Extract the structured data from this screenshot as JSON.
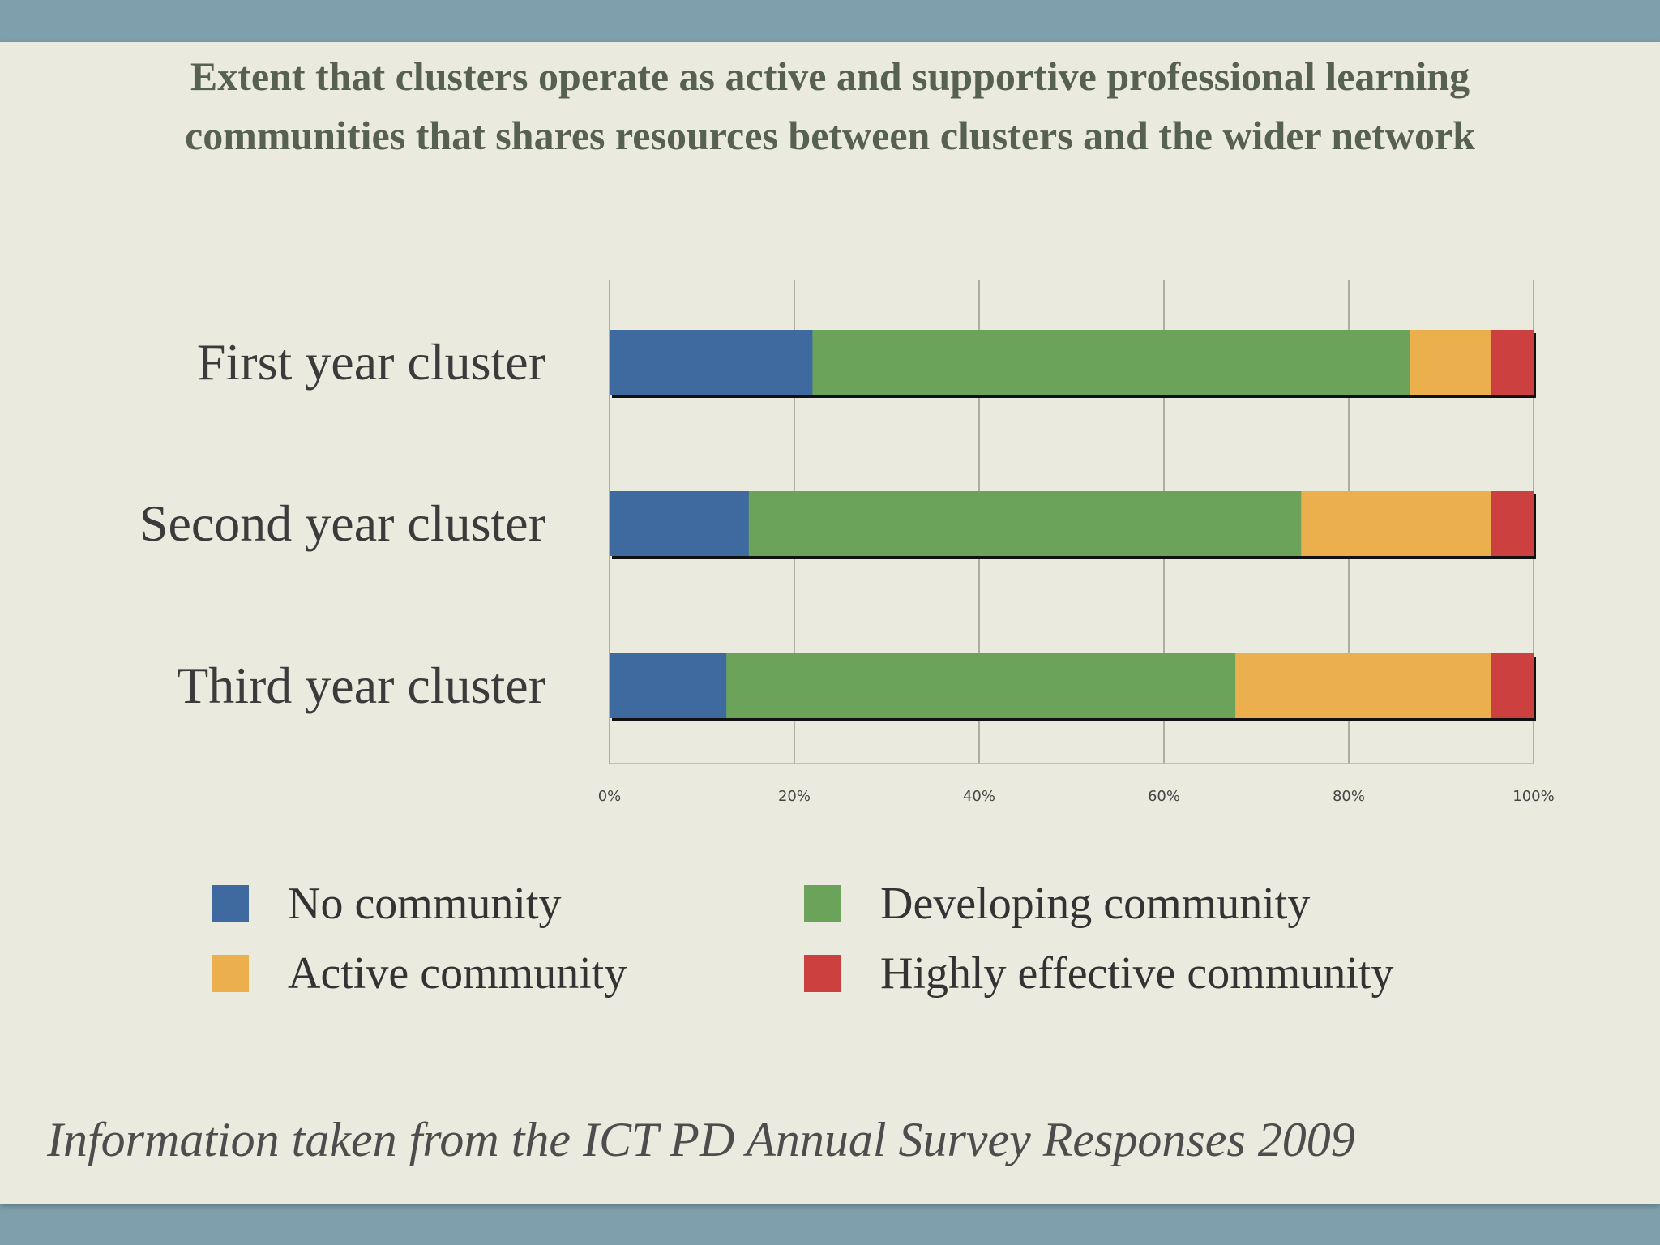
{
  "title": {
    "line1": "Extent that clusters operate as active and supportive professional learning",
    "line2": "communities that shares resources between clusters and the wider network"
  },
  "source_note": "Information taken from the ICT PD Annual Survey Responses 2009",
  "chart_data": {
    "type": "bar",
    "orientation": "horizontal",
    "stacked": "percent",
    "categories": [
      "First year cluster",
      "Second year cluster",
      "Third year cluster"
    ],
    "series": [
      {
        "name": "No community",
        "color": "#3e6a9f",
        "values": [
          21.7,
          15.1,
          12.7
        ]
      },
      {
        "name": "Developing community",
        "color": "#6ca35a",
        "values": [
          63.9,
          59.9,
          55.3
        ]
      },
      {
        "name": "Active community",
        "color": "#ecaf4d",
        "values": [
          8.6,
          20.6,
          27.8
        ]
      },
      {
        "name": "Highly effective community",
        "color": "#cc4040",
        "values": [
          4.6,
          4.6,
          4.6
        ]
      }
    ],
    "x_ticks": [
      "0%",
      "20%",
      "40%",
      "60%",
      "80%",
      "100%"
    ],
    "xlim": [
      0,
      100
    ],
    "grid": true,
    "legend_position": "bottom"
  }
}
